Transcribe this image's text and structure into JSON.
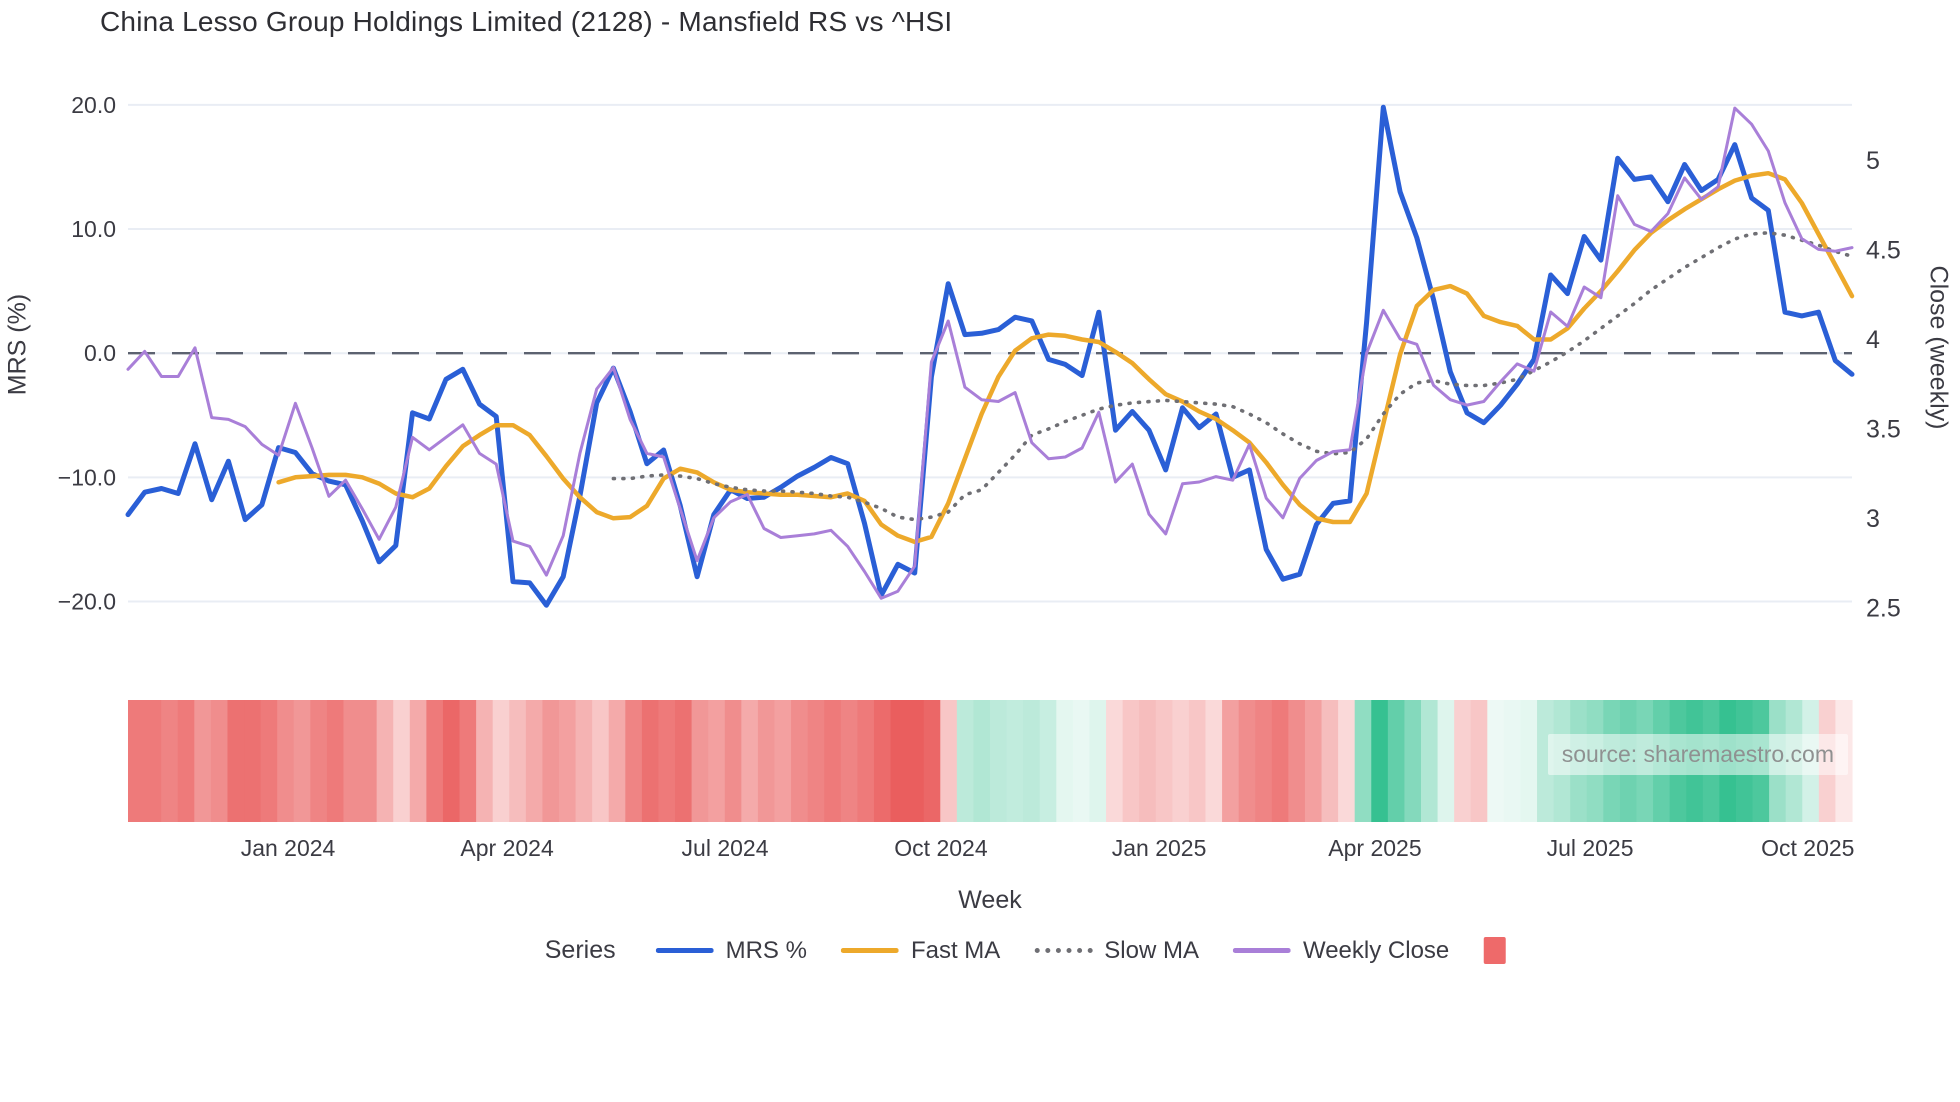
{
  "title": "China Lesso Group Holdings Limited (2128) - Mansfield RS vs ^HSI",
  "source": "source: sharemaestro.com",
  "axes": {
    "y_left_label": "MRS (%)",
    "y_right_label": "Close (weekly)",
    "x_label": "Week",
    "left_ticks": [
      {
        "v": 20,
        "label": "20.0"
      },
      {
        "v": 10,
        "label": "10.0"
      },
      {
        "v": 0,
        "label": "0.0"
      },
      {
        "v": -10,
        "label": "−10.0"
      },
      {
        "v": -20,
        "label": "−20.0"
      }
    ],
    "right_ticks": [
      {
        "v": 5,
        "label": "5"
      },
      {
        "v": 4.5,
        "label": "4.5"
      },
      {
        "v": 4,
        "label": "4"
      },
      {
        "v": 3.5,
        "label": "3.5"
      },
      {
        "v": 3,
        "label": "3"
      },
      {
        "v": 2.5,
        "label": "2.5"
      }
    ],
    "x_ticks": [
      {
        "week": 9.56,
        "label": "Jan 2024"
      },
      {
        "week": 22.65,
        "label": "Apr 2024"
      },
      {
        "week": 35.67,
        "label": "Jul 2024"
      },
      {
        "week": 48.57,
        "label": "Oct 2024"
      },
      {
        "week": 61.6,
        "label": "Jan 2025"
      },
      {
        "week": 74.5,
        "label": "Apr 2025"
      },
      {
        "week": 87.35,
        "label": "Jul 2025"
      },
      {
        "week": 100.36,
        "label": "Oct 2025"
      }
    ]
  },
  "legend": {
    "series_label": "Series",
    "items": [
      {
        "label": "MRS %",
        "color": "#2a5fd6",
        "style": "solid"
      },
      {
        "label": "Fast MA",
        "color": "#eda92b",
        "style": "solid"
      },
      {
        "label": "Slow MA",
        "color": "#6f6f74",
        "style": "dotted"
      },
      {
        "label": "Weekly Close",
        "color": "#a97fd8",
        "style": "solid"
      },
      {
        "label": "",
        "color": "#ee6a6a",
        "style": "square"
      }
    ]
  },
  "chart_data": {
    "type": "line",
    "title": "China Lesso Group Holdings Limited (2128) - Mansfield RS vs ^HSI",
    "xlabel": "Week",
    "ylabel_left": "MRS (%)",
    "ylabel_right": "Close (weekly)",
    "n_points": 104,
    "ylim_left": [
      -23.1,
      21.6
    ],
    "ylim_right": [
      2.317,
      5.419
    ],
    "zero_line": true,
    "grid": true,
    "colors": {
      "mrs": "#2a5fd6",
      "fast_ma": "#eda92b",
      "slow_ma": "#6f6f74",
      "weekly_close": "#a97fd8",
      "zero_line": "#5c6270",
      "gridline": "#e9edf4",
      "heat_red": "#e64141",
      "heat_green": "#20ba85"
    },
    "series": [
      {
        "name": "MRS %",
        "axis": "left",
        "style": "solid",
        "width": 5,
        "values": [
          -13.0,
          -11.2,
          -10.9,
          -11.3,
          -7.3,
          -11.8,
          -8.7,
          -13.4,
          -12.2,
          -7.6,
          -8.0,
          -9.7,
          -10.3,
          -10.6,
          -13.5,
          -16.8,
          -15.5,
          -4.8,
          -5.3,
          -2.1,
          -1.3,
          -4.1,
          -5.1,
          -18.4,
          -18.5,
          -20.3,
          -18.0,
          -11.5,
          -4.0,
          -1.2,
          -4.7,
          -8.9,
          -7.8,
          -12.3,
          -18.0,
          -13.0,
          -11.0,
          -11.7,
          -11.6,
          -10.8,
          -9.9,
          -9.2,
          -8.4,
          -8.9,
          -13.7,
          -19.5,
          -17.0,
          -17.7,
          -1.9,
          5.6,
          1.5,
          1.6,
          1.9,
          2.9,
          2.6,
          -0.5,
          -0.9,
          -1.8,
          3.3,
          -6.2,
          -4.7,
          -6.2,
          -9.4,
          -4.4,
          -6.0,
          -4.9,
          -10.0,
          -9.4,
          -15.8,
          -18.2,
          -17.8,
          -13.8,
          -12.1,
          -11.9,
          2.5,
          19.8,
          13.0,
          9.3,
          4.3,
          -1.5,
          -4.8,
          -5.6,
          -4.2,
          -2.5,
          -0.5,
          6.3,
          4.8,
          9.4,
          7.5,
          15.7,
          14.0,
          14.2,
          12.2,
          15.2,
          13.1,
          14.0,
          16.8,
          12.5,
          11.5,
          3.3,
          3.0,
          3.3,
          -0.6,
          -1.7
        ]
      },
      {
        "name": "Fast MA",
        "axis": "left",
        "style": "solid",
        "width": 4.5,
        "values": [
          null,
          null,
          null,
          null,
          null,
          null,
          null,
          null,
          null,
          -10.4,
          -10.0,
          -9.9,
          -9.8,
          -9.8,
          -10.0,
          -10.5,
          -11.3,
          -11.6,
          -10.9,
          -9.1,
          -7.5,
          -6.6,
          -5.8,
          -5.8,
          -6.6,
          -8.3,
          -10.1,
          -11.6,
          -12.8,
          -13.3,
          -13.2,
          -12.3,
          -10.1,
          -9.3,
          -9.6,
          -10.4,
          -11.0,
          -11.2,
          -11.3,
          -11.4,
          -11.4,
          -11.5,
          -11.6,
          -11.3,
          -11.9,
          -13.8,
          -14.7,
          -15.2,
          -14.8,
          -12.1,
          -8.5,
          -4.9,
          -1.9,
          0.2,
          1.2,
          1.5,
          1.4,
          1.1,
          0.9,
          0.1,
          -0.8,
          -2.1,
          -3.3,
          -3.9,
          -4.7,
          -5.3,
          -6.2,
          -7.2,
          -8.8,
          -10.6,
          -12.2,
          -13.3,
          -13.6,
          -13.6,
          -11.3,
          -5.7,
          -0.1,
          3.8,
          5.1,
          5.4,
          4.8,
          3.0,
          2.5,
          2.2,
          1.1,
          1.1,
          2.0,
          3.6,
          5.0,
          6.6,
          8.3,
          9.7,
          10.7,
          11.6,
          12.4,
          13.2,
          13.9,
          14.3,
          14.5,
          14.0,
          12.1,
          9.6,
          7.1,
          4.6
        ]
      },
      {
        "name": "Slow MA",
        "axis": "left",
        "style": "dotted",
        "width": 3.6,
        "values": [
          null,
          null,
          null,
          null,
          null,
          null,
          null,
          null,
          null,
          null,
          null,
          null,
          null,
          null,
          null,
          null,
          null,
          null,
          null,
          null,
          null,
          null,
          null,
          null,
          null,
          null,
          null,
          null,
          null,
          -10.1,
          -10.1,
          -9.9,
          -9.8,
          -9.9,
          -10.1,
          -10.5,
          -10.8,
          -11.0,
          -11.1,
          -11.1,
          -11.2,
          -11.3,
          -11.5,
          -11.6,
          -12.0,
          -12.5,
          -13.2,
          -13.4,
          -13.2,
          -12.8,
          -11.4,
          -11.0,
          -9.6,
          -8.2,
          -6.6,
          -6.1,
          -5.5,
          -5.0,
          -4.5,
          -4.2,
          -4.0,
          -3.9,
          -3.8,
          -3.9,
          -4.0,
          -4.1,
          -4.3,
          -4.9,
          -5.6,
          -6.5,
          -7.3,
          -7.9,
          -8.1,
          -8.0,
          -6.9,
          -4.9,
          -3.3,
          -2.4,
          -2.2,
          -2.5,
          -2.6,
          -2.6,
          -2.4,
          -2.1,
          -1.4,
          -0.7,
          0.1,
          1.0,
          2.0,
          3.0,
          4.0,
          5.1,
          6.0,
          6.9,
          7.7,
          8.5,
          9.2,
          9.6,
          9.7,
          9.5,
          9.1,
          8.7,
          8.2,
          7.8
        ]
      },
      {
        "name": "Weekly Close",
        "axis": "right",
        "style": "solid",
        "width": 3,
        "values": [
          3.83,
          3.93,
          3.79,
          3.79,
          3.95,
          3.56,
          3.55,
          3.51,
          3.41,
          3.35,
          3.64,
          3.39,
          3.12,
          3.21,
          3.05,
          2.88,
          3.06,
          3.45,
          3.38,
          3.45,
          3.52,
          3.36,
          3.3,
          2.87,
          2.84,
          2.68,
          2.9,
          3.36,
          3.72,
          3.84,
          3.55,
          3.36,
          3.34,
          3.05,
          2.76,
          3.0,
          3.09,
          3.13,
          2.94,
          2.89,
          2.9,
          2.91,
          2.93,
          2.84,
          2.7,
          2.55,
          2.59,
          2.73,
          3.87,
          4.1,
          3.73,
          3.66,
          3.65,
          3.7,
          3.42,
          3.33,
          3.34,
          3.39,
          3.59,
          3.2,
          3.3,
          3.02,
          2.91,
          3.19,
          3.2,
          3.23,
          3.21,
          3.41,
          3.11,
          3.0,
          3.22,
          3.32,
          3.37,
          3.38,
          3.92,
          4.16,
          4.0,
          3.97,
          3.74,
          3.66,
          3.63,
          3.65,
          3.76,
          3.86,
          3.82,
          4.15,
          4.07,
          4.29,
          4.23,
          4.8,
          4.64,
          4.6,
          4.7,
          4.9,
          4.78,
          4.85,
          5.29,
          5.2,
          5.05,
          4.76,
          4.56,
          4.5,
          4.49,
          4.51
        ]
      }
    ],
    "heatmap": {
      "description": "weekly relative-strength heat strip, red negative to green positive",
      "values": [
        -0.7,
        -0.7,
        -0.65,
        -0.7,
        -0.55,
        -0.6,
        -0.75,
        -0.75,
        -0.7,
        -0.6,
        -0.55,
        -0.65,
        -0.7,
        -0.6,
        -0.6,
        -0.4,
        -0.25,
        -0.45,
        -0.7,
        -0.8,
        -0.7,
        -0.4,
        -0.25,
        -0.35,
        -0.45,
        -0.55,
        -0.5,
        -0.4,
        -0.3,
        -0.45,
        -0.65,
        -0.75,
        -0.7,
        -0.75,
        -0.55,
        -0.5,
        -0.6,
        -0.45,
        -0.55,
        -0.5,
        -0.6,
        -0.65,
        -0.7,
        -0.65,
        -0.7,
        -0.78,
        -0.85,
        -0.85,
        -0.8,
        -0.3,
        0.3,
        0.35,
        0.3,
        0.28,
        0.3,
        0.25,
        0.12,
        0.1,
        0.15,
        -0.2,
        -0.3,
        -0.35,
        -0.3,
        -0.25,
        -0.3,
        -0.2,
        -0.5,
        -0.6,
        -0.65,
        -0.7,
        -0.6,
        -0.5,
        -0.35,
        -0.2,
        0.5,
        0.9,
        0.7,
        0.55,
        0.35,
        0.15,
        -0.25,
        -0.3,
        0.08,
        0.1,
        0.12,
        0.3,
        0.35,
        0.45,
        0.5,
        0.6,
        0.65,
        0.6,
        0.7,
        0.8,
        0.85,
        0.8,
        0.9,
        0.85,
        0.8,
        0.45,
        0.35,
        0.2,
        -0.25,
        -0.12
      ]
    }
  }
}
